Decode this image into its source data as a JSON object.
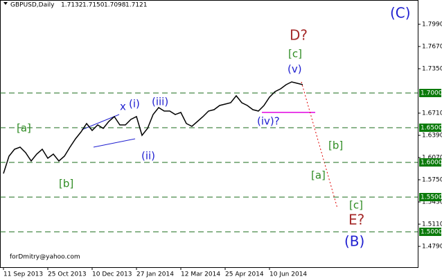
{
  "chart_data": {
    "type": "line",
    "header": {
      "symbol": "GBPUSD,Daily",
      "ohlc": [
        "1.7132",
        "1.7150",
        "1.7098",
        "1.7121"
      ]
    },
    "footer": "forDmitry@yahoo.com",
    "categories": [
      "11 Sep 2013",
      null,
      null,
      null,
      null,
      null,
      null,
      null,
      "25 Oct 2013",
      null,
      null,
      null,
      null,
      null,
      null,
      null,
      "10 Dec 2013",
      null,
      null,
      null,
      null,
      null,
      null,
      null,
      "27 Jan 2014",
      null,
      null,
      null,
      null,
      null,
      null,
      null,
      "12 Mar 2014",
      null,
      null,
      null,
      null,
      null,
      null,
      null,
      "25 Apr 2014",
      null,
      null,
      null,
      null,
      null,
      null,
      null,
      "10 Jun 2014",
      null,
      null,
      null,
      null,
      null,
      null
    ],
    "series": [
      {
        "name": "GBPUSD",
        "color": "#000000",
        "values": [
          1.584,
          1.609,
          1.619,
          1.622,
          1.614,
          1.602,
          1.612,
          1.619,
          1.606,
          1.612,
          1.602,
          1.609,
          1.622,
          1.634,
          1.644,
          1.656,
          1.646,
          1.654,
          1.649,
          1.659,
          1.666,
          1.654,
          1.654,
          1.662,
          1.666,
          1.639,
          1.649,
          1.669,
          1.679,
          1.674,
          1.674,
          1.669,
          1.672,
          1.656,
          1.652,
          1.659,
          1.666,
          1.674,
          1.676,
          1.682,
          1.684,
          1.686,
          1.696,
          1.686,
          1.682,
          1.676,
          1.674,
          1.682,
          1.694,
          1.702,
          1.706,
          1.712,
          1.716,
          1.714,
          1.712
        ]
      }
    ],
    "ylim": [
      1.449,
      1.834
    ],
    "yticks": [
      {
        "value": 1.799,
        "label": "1.7990"
      },
      {
        "value": 1.767,
        "label": "1.7670"
      },
      {
        "value": 1.735,
        "label": "1.7350"
      },
      {
        "value": 1.671,
        "label": "1.6710"
      },
      {
        "value": 1.639,
        "label": "1.6390"
      },
      {
        "value": 1.607,
        "label": "1.6070"
      },
      {
        "value": 1.575,
        "label": "1.5750"
      },
      {
        "value": 1.543,
        "label": "1.5430"
      },
      {
        "value": 1.511,
        "label": "1.5110"
      },
      {
        "value": 1.479,
        "label": "1.4790"
      }
    ],
    "levels": [
      {
        "value": 1.7,
        "label": "1.7000"
      },
      {
        "value": 1.65,
        "label": "1.6500"
      },
      {
        "value": 1.6,
        "label": "1.6000"
      },
      {
        "value": 1.55,
        "label": "1.5500"
      },
      {
        "value": 1.5,
        "label": "1.5000"
      }
    ],
    "annotations": [
      {
        "text": "(C)",
        "color": "#1f1fd0"
      },
      {
        "text": "D?",
        "color": "#a52a2a"
      },
      {
        "text": "[c]",
        "color": "#2e8b22"
      },
      {
        "text": "(v)",
        "color": "#1f1fd0"
      },
      {
        "text": "x",
        "color": "#1f1fd0"
      },
      {
        "text": "(i)",
        "color": "#1f1fd0"
      },
      {
        "text": "(iii)",
        "color": "#1f1fd0"
      },
      {
        "text": "[a]",
        "color": "#2e8b22"
      },
      {
        "text": "(iv)?",
        "color": "#1f1fd0"
      },
      {
        "text": "[b]",
        "color": "#2e8b22"
      },
      {
        "text": "(ii)",
        "color": "#1f1fd0"
      },
      {
        "text": "[a]",
        "color": "#2e8b22"
      },
      {
        "text": "[b]",
        "color": "#2e8b22"
      },
      {
        "text": "[c]",
        "color": "#2e8b22"
      },
      {
        "text": "E?",
        "color": "#a52a2a"
      },
      {
        "text": "(B)",
        "color": "#1f1fd0"
      }
    ]
  }
}
